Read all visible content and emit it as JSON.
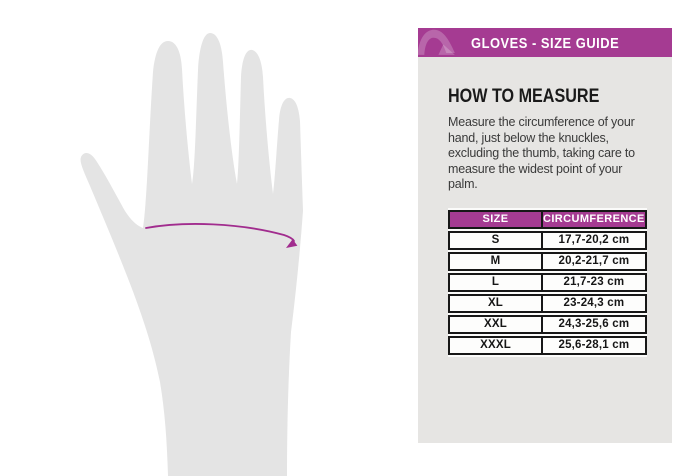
{
  "header": {
    "title": "GLOVES - SIZE GUIDE",
    "bar_color": "#a53b92",
    "logo_icon": "acerbis-brand-logo"
  },
  "how_to_measure": {
    "heading": "HOW TO MEASURE",
    "body": "Measure the circumference of your hand, just below the knuckles, excluding the thumb, taking care to measure the widest point of your palm."
  },
  "size_table": {
    "columns": [
      "SIZE",
      "CIRCUMFERENCE"
    ],
    "rows": [
      {
        "size": "S",
        "circumference": "17,7-20,2 cm"
      },
      {
        "size": "M",
        "circumference": "20,2-21,7 cm"
      },
      {
        "size": "L",
        "circumference": "21,7-23 cm"
      },
      {
        "size": "XL",
        "circumference": "23-24,3 cm"
      },
      {
        "size": "XXL",
        "circumference": "24,3-25,6 cm"
      },
      {
        "size": "XXXL",
        "circumference": "25,6-28,1 cm"
      }
    ],
    "header_bg": "#a53b92",
    "row_bg": "#fdfdfc",
    "border_color": "#171717"
  },
  "illustration": {
    "name": "hand-with-measurement-line",
    "hand_fill": "#e4e4e4",
    "measure_line_color": "#a12c8e",
    "panel_bg": "#e6e5e3"
  }
}
